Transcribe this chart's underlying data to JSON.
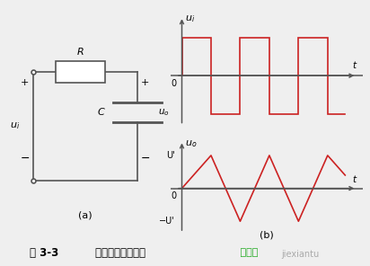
{
  "fig_width": 4.12,
  "fig_height": 2.96,
  "dpi": 100,
  "bg_color": "#efefef",
  "sq_wave_color": "#cc2222",
  "tri_wave_color": "#cc2222",
  "axis_color": "#555555",
  "circuit_color": "#555555",
  "label_a": "(a)",
  "label_b": "(b)",
  "sq_x": [
    0.0,
    0.0,
    0.5,
    0.5,
    1.0,
    1.0,
    1.5,
    1.5,
    2.0,
    2.0,
    2.5,
    2.5,
    2.8
  ],
  "sq_y": [
    0,
    1,
    1,
    -1,
    -1,
    1,
    1,
    -1,
    -1,
    1,
    1,
    -1,
    -1
  ],
  "tri_x": [
    0.0,
    0.5,
    1.0,
    1.5,
    2.0,
    2.5,
    2.8
  ],
  "tri_y": [
    0.0,
    1.0,
    -1.0,
    1.0,
    -1.0,
    1.0,
    0.4
  ],
  "caption_fig": "图 3-3",
  "caption_text": "    积分电路及其波形",
  "caption_green": " 接线图",
  "caption_gray": "jiexiantu",
  "green_color": "#22aa22",
  "gray_color": "#aaaaaa"
}
